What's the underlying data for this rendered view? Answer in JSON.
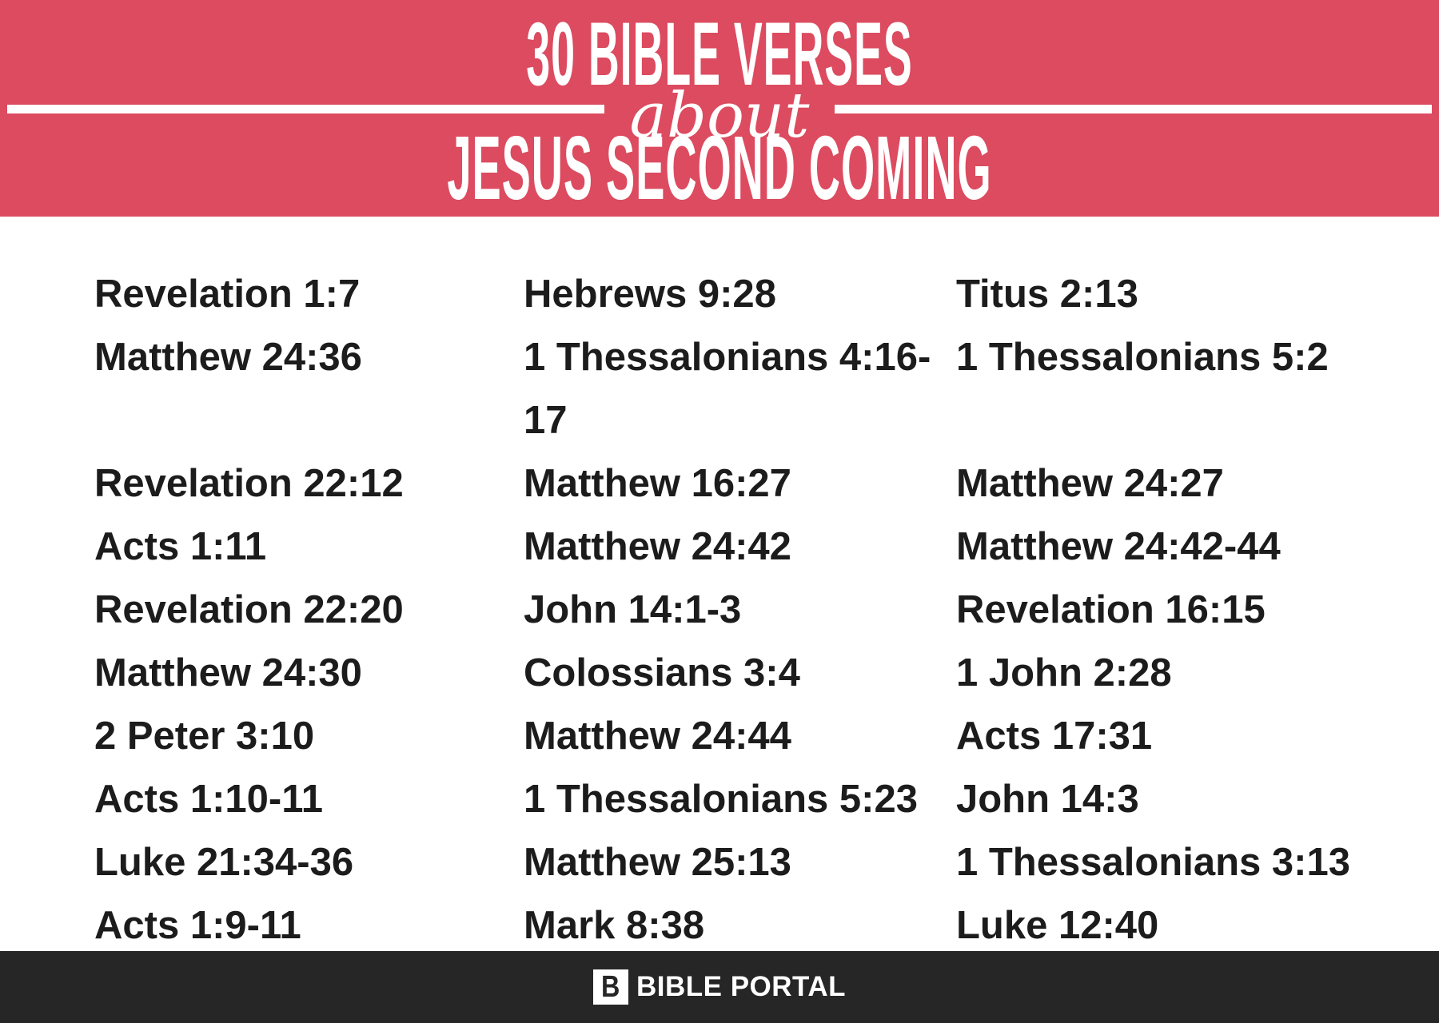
{
  "header": {
    "title_line1": "30 BIBLE VERSES",
    "connector": "about",
    "title_line2": "JESUS SECOND COMING",
    "background_color": "#dc4b5f",
    "text_color": "#ffffff"
  },
  "verses": {
    "text_color": "#1c1c1c",
    "columns": [
      {
        "items": [
          "Revelation 1:7",
          "Matthew 24:36",
          "Revelation 22:12",
          "Acts 1:11",
          "Revelation 22:20",
          "Matthew 24:30",
          "2 Peter 3:10",
          "Acts 1:10-11",
          "Luke 21:34-36",
          "Acts 1:9-11"
        ]
      },
      {
        "items": [
          "Hebrews 9:28",
          "1 Thessalonians 4:16-17",
          "Matthew 16:27",
          "Matthew 24:42",
          "John 14:1-3",
          "Colossians 3:4",
          "Matthew 24:44",
          "1 Thessalonians 5:23",
          "Matthew 25:13",
          "Mark 8:38"
        ]
      },
      {
        "items": [
          "Titus 2:13",
          "1 Thessalonians 5:2",
          "Matthew 24:27",
          "Matthew 24:42-44",
          "Revelation 16:15",
          "1 John 2:28",
          "Acts 17:31",
          "John 14:3",
          "1 Thessalonians 3:13",
          "Luke 12:40"
        ]
      }
    ]
  },
  "footer": {
    "logo_letter": "B",
    "brand": "BIBLE PORTAL",
    "background_color": "#262626"
  }
}
